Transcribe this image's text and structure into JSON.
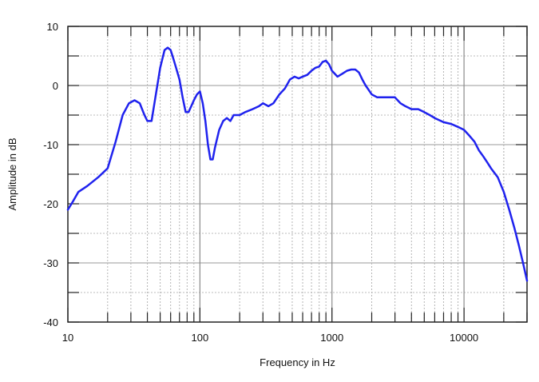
{
  "chart_data": {
    "type": "line",
    "title": "",
    "xlabel": "Frequency in Hz",
    "ylabel": "Amplitude in dB",
    "xscale": "log",
    "xlim": [
      10,
      30000
    ],
    "ylim": [
      -40,
      10
    ],
    "x_ticks": [
      10,
      100,
      1000,
      10000
    ],
    "x_tick_labels": [
      "10",
      "100",
      "1000",
      "10000"
    ],
    "y_ticks": [
      -40,
      -30,
      -20,
      -10,
      0,
      10
    ],
    "y_tick_labels": [
      "-40",
      "-30",
      "-20",
      "-10",
      "0",
      "10"
    ],
    "grid": true,
    "series_color": "#1f22ee",
    "series": [
      {
        "x": [
          10,
          11,
          12,
          14,
          17,
          20,
          23,
          26,
          29,
          32,
          35,
          38,
          40,
          43,
          46,
          50,
          54,
          57,
          60,
          63,
          66,
          70,
          74,
          78,
          82,
          86,
          90,
          95,
          100,
          105,
          110,
          115,
          120,
          125,
          130,
          140,
          150,
          160,
          170,
          180,
          200,
          220,
          250,
          280,
          300,
          330,
          360,
          400,
          440,
          480,
          520,
          560,
          600,
          650,
          700,
          750,
          800,
          850,
          900,
          950,
          1000,
          1100,
          1200,
          1300,
          1400,
          1500,
          1600,
          1700,
          1800,
          2000,
          2200,
          2500,
          2800,
          3000,
          3300,
          3600,
          4000,
          4500,
          5000,
          5500,
          6000,
          7000,
          8000,
          9000,
          10000,
          11000,
          12000,
          13000,
          14000,
          15000,
          16000,
          18000,
          20000,
          22000,
          24000,
          26000,
          28000,
          30000
        ],
        "y": [
          -21,
          -19.5,
          -18,
          -17,
          -15.5,
          -14,
          -9.5,
          -5,
          -3,
          -2.5,
          -3,
          -5,
          -6,
          -6,
          -2,
          3,
          6,
          6.4,
          6,
          4.5,
          3,
          1,
          -2,
          -4.5,
          -4.5,
          -3.5,
          -2.5,
          -1.5,
          -1,
          -3,
          -6,
          -10,
          -12.5,
          -12.5,
          -10.5,
          -7.5,
          -6,
          -5.5,
          -6,
          -5,
          -5,
          -4.5,
          -4,
          -3.5,
          -3,
          -3.5,
          -3,
          -1.5,
          -0.5,
          1,
          1.5,
          1.2,
          1.5,
          1.8,
          2.5,
          3,
          3.2,
          4,
          4.2,
          3.6,
          2.5,
          1.5,
          2,
          2.5,
          2.7,
          2.7,
          2.2,
          1,
          0,
          -1.5,
          -2,
          -2,
          -2,
          -2,
          -3,
          -3.5,
          -4,
          -4,
          -4.5,
          -5,
          -5.5,
          -6.2,
          -6.5,
          -7,
          -7.5,
          -8.5,
          -9.5,
          -11,
          -12,
          -13,
          -14,
          -15.5,
          -18,
          -21,
          -24,
          -27,
          -30,
          -33
        ]
      }
    ]
  }
}
